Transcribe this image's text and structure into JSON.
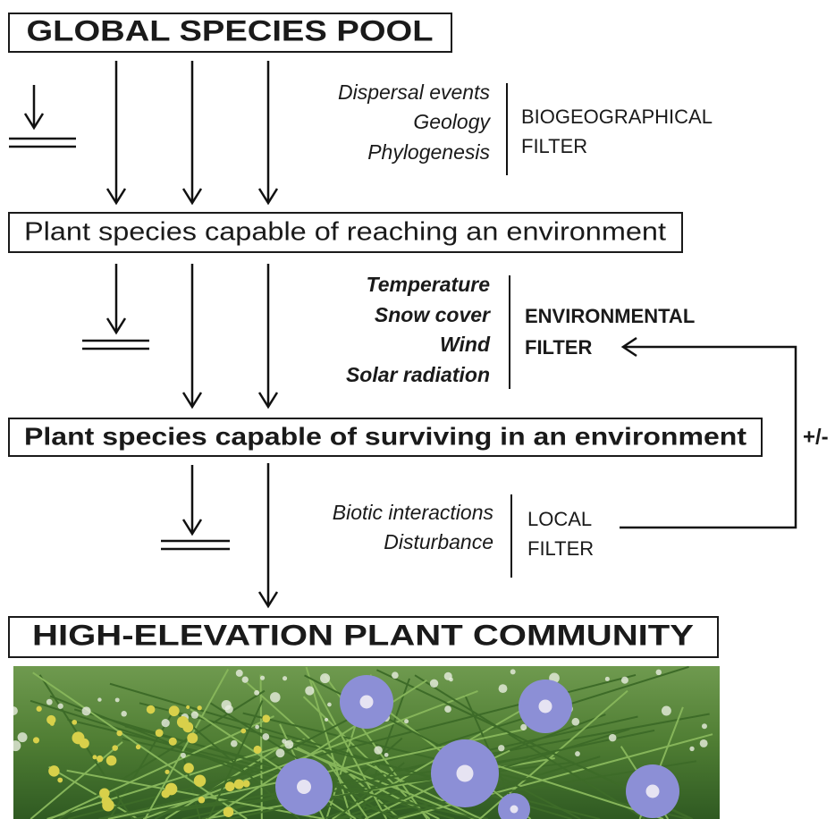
{
  "header": {
    "title": "GLOBAL SPECIES POOL"
  },
  "stages": [
    "Plant species capable of reaching an environment",
    "Plant species capable of surviving in an environment"
  ],
  "filters": [
    {
      "factors": [
        "Dispersal events",
        "Geology",
        "Phylogenesis"
      ],
      "label": [
        "BIOGEOGRAPHICAL",
        "FILTER"
      ]
    },
    {
      "factors": [
        "Temperature",
        "Snow cover",
        "Wind",
        "Solar radiation"
      ],
      "label": [
        "ENVIRONMENTAL",
        "FILTER"
      ]
    },
    {
      "factors": [
        "Biotic interactions",
        "Disturbance"
      ],
      "label": [
        "LOCAL",
        "FILTER"
      ]
    }
  ],
  "feedback_label": "+/-",
  "result": {
    "title": "HIGH-ELEVATION PLANT COMMUNITY"
  }
}
